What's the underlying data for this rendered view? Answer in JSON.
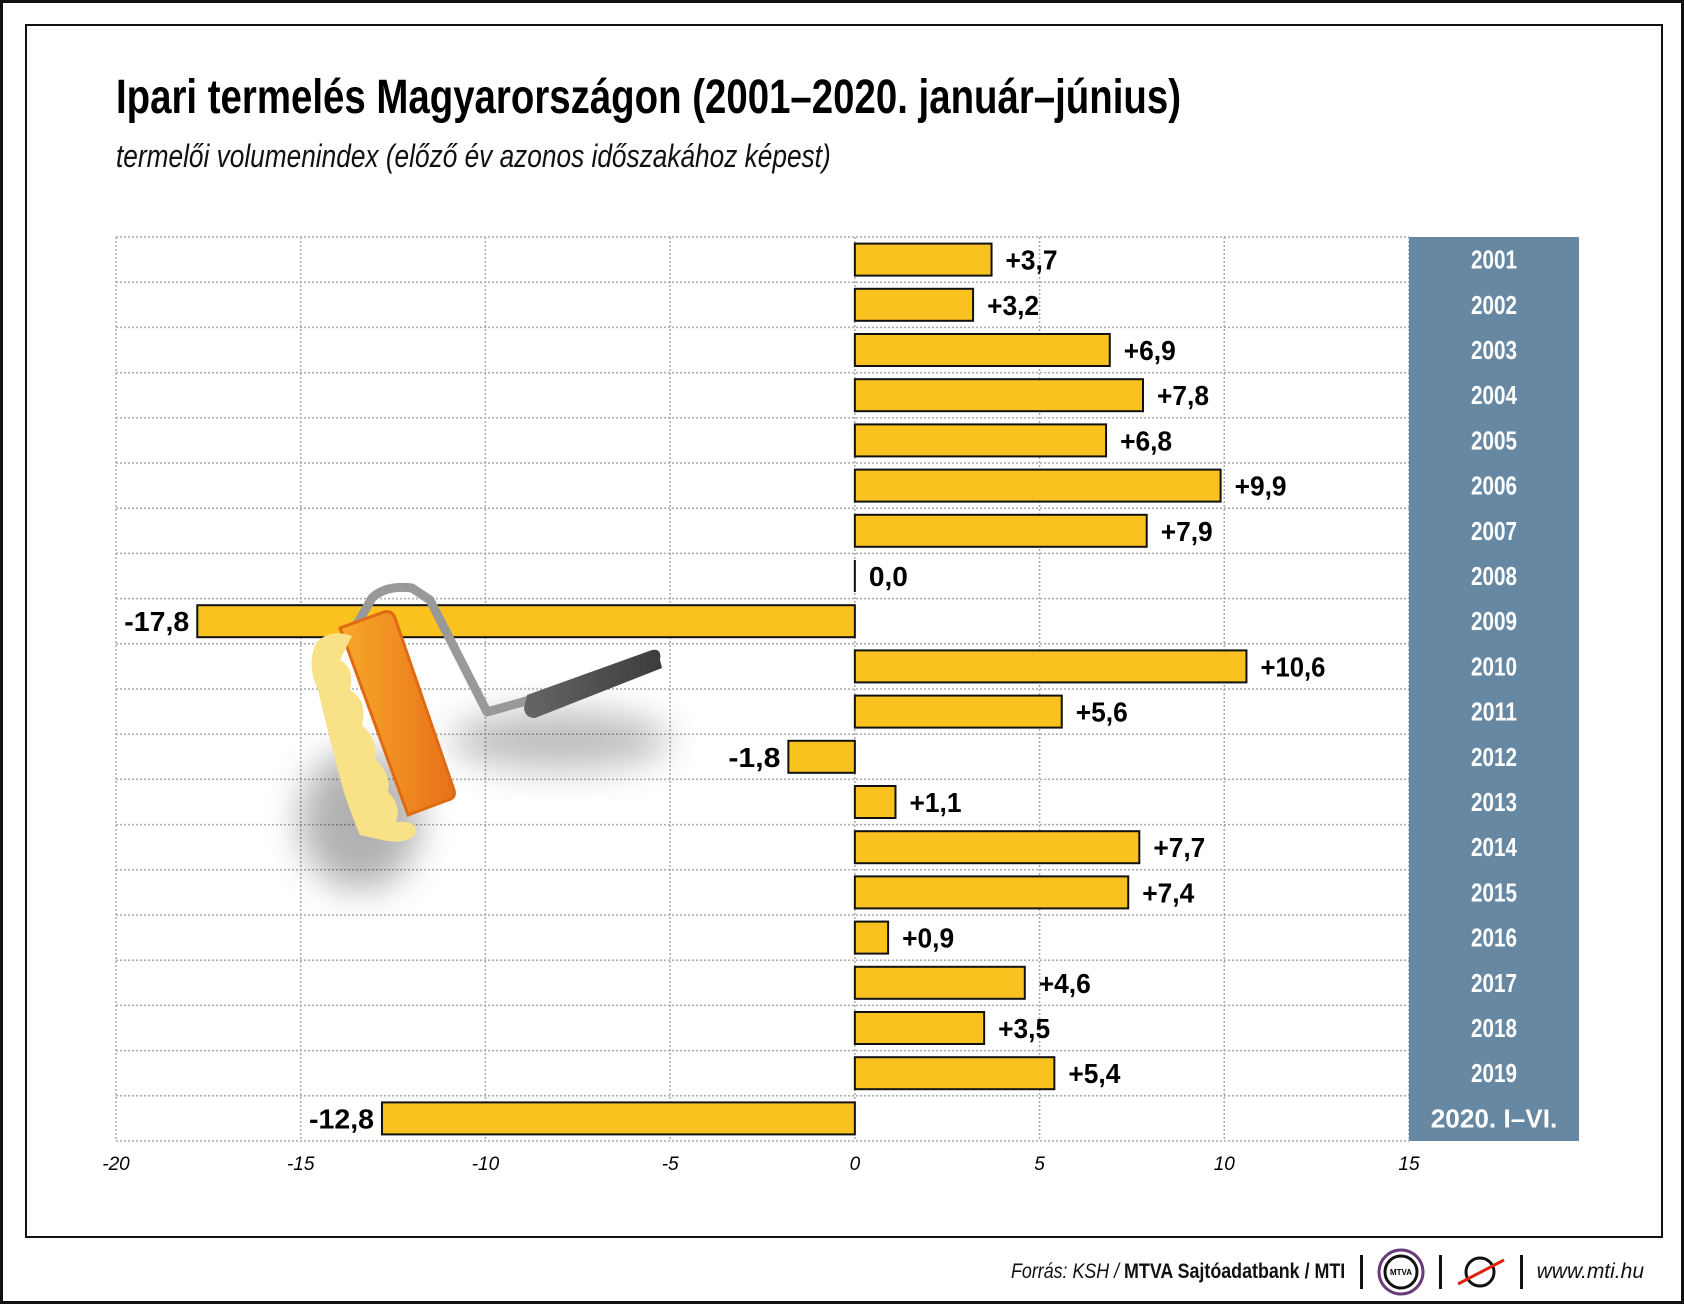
{
  "title": "Ipari termelés Magyarországon (2001–2020. január–június)",
  "subtitle": "termelői volumenindex (előző év azonos időszakához képest)",
  "footer": {
    "source_prefix": "Forrás: KSH / ",
    "source_bold": "MTVA Sajtóadatbank / MTI",
    "logo_mtva": "MTVA",
    "url": "www.mti.hu"
  },
  "colors": {
    "bar": "#f9c21f",
    "year_panel": "#6788a2",
    "grid": "#aaaaaa"
  },
  "chart_data": {
    "type": "bar",
    "orientation": "horizontal",
    "categories": [
      "2001",
      "2002",
      "2003",
      "2004",
      "2005",
      "2006",
      "2007",
      "2008",
      "2009",
      "2010",
      "2011",
      "2012",
      "2013",
      "2014",
      "2015",
      "2016",
      "2017",
      "2018",
      "2019",
      "2020. I–VI."
    ],
    "values": [
      3.7,
      3.2,
      6.9,
      7.8,
      6.8,
      9.9,
      7.9,
      0.0,
      -17.8,
      10.6,
      5.6,
      -1.8,
      1.1,
      7.7,
      7.4,
      0.9,
      4.6,
      3.5,
      5.4,
      -12.8
    ],
    "labels": [
      "+3,7",
      "+3,2",
      "+6,9",
      "+7,8",
      "+6,8",
      "+9,9",
      "+7,9",
      "0,0",
      "-17,8",
      "+10,6",
      "+5,6",
      "-1,8",
      "+1,1",
      "+7,7",
      "+7,4",
      "+0,9",
      "+4,6",
      "+3,5",
      "+5,4",
      "-12,8"
    ],
    "xlim": [
      -20,
      15
    ],
    "xticks": [
      -20,
      -15,
      -10,
      -5,
      0,
      5,
      10,
      15
    ],
    "xtick_labels": [
      "-20",
      "-15",
      "-10",
      "-5",
      "0",
      "5",
      "10",
      "15"
    ],
    "grid": true,
    "xlabel": "",
    "ylabel": ""
  }
}
